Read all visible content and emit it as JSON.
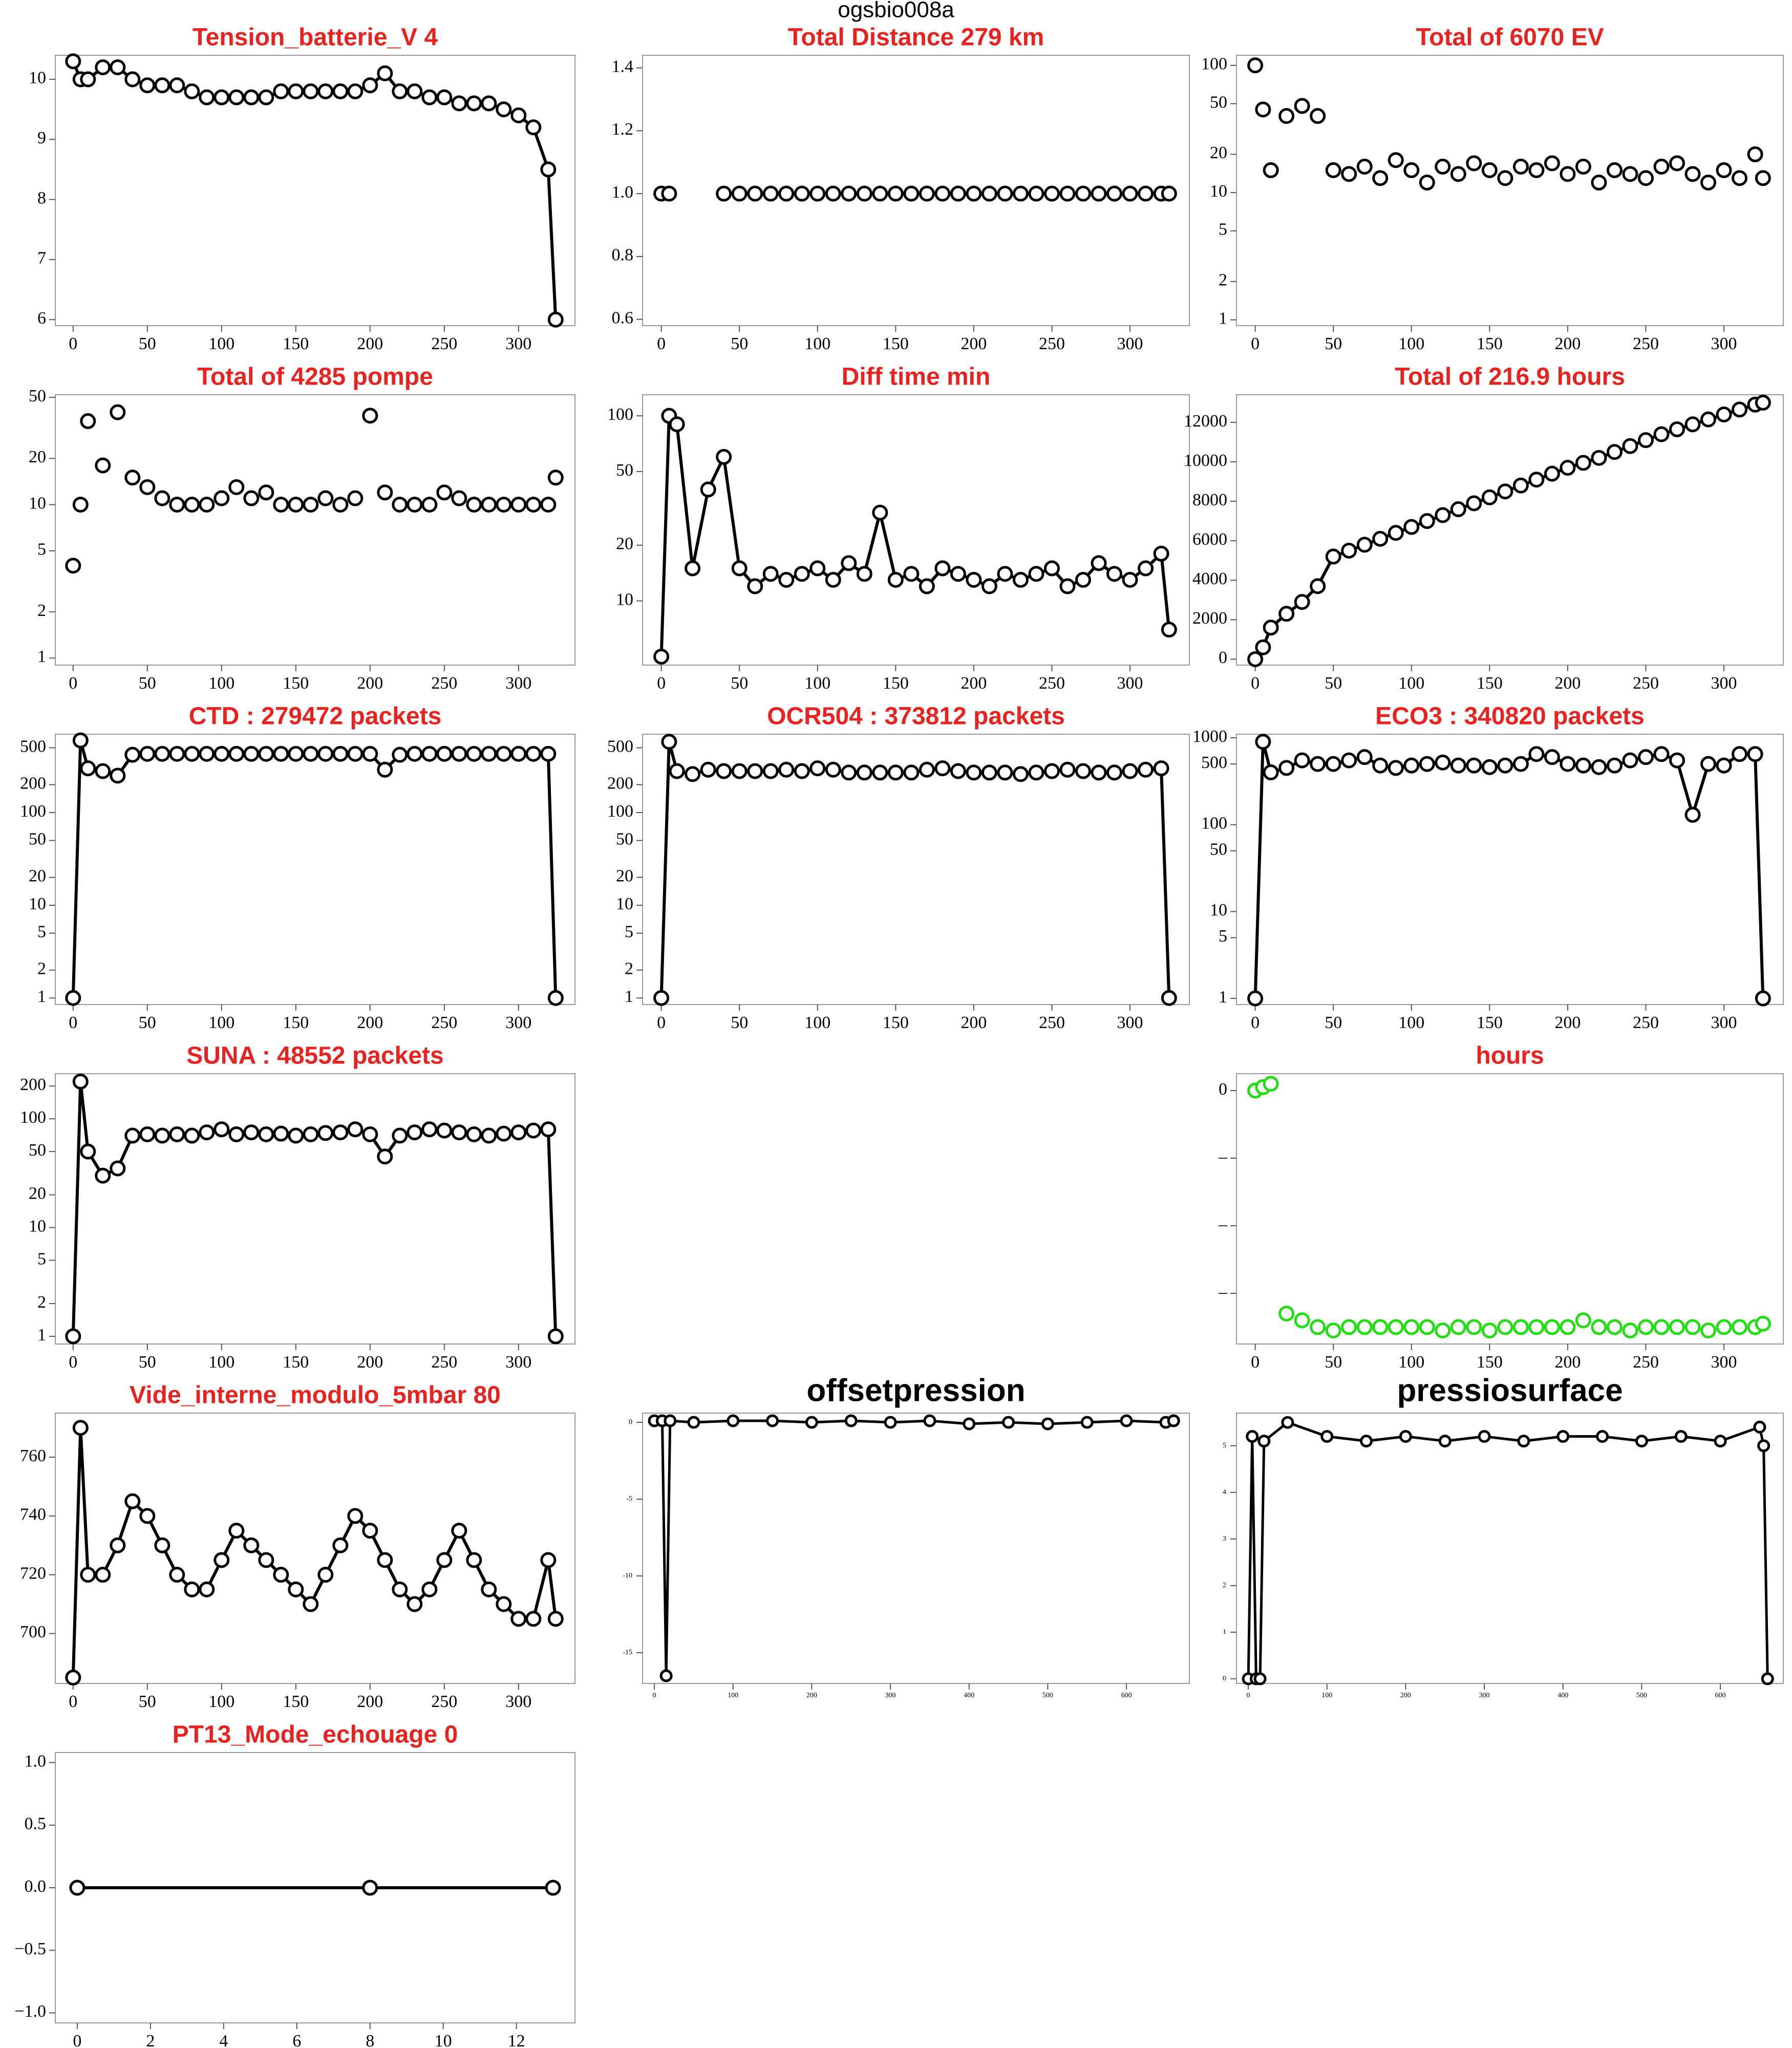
{
  "title": "ogsbio008a",
  "chart_data": [
    {
      "type": "line",
      "title": "Tension_batterie_V 4",
      "title_color": "#e8231f",
      "log_y": false,
      "color": "#000000",
      "x": [
        0,
        5,
        10,
        20,
        30,
        40,
        50,
        60,
        70,
        80,
        90,
        100,
        110,
        120,
        130,
        140,
        150,
        160,
        170,
        180,
        190,
        200,
        210,
        220,
        230,
        240,
        250,
        260,
        270,
        280,
        290,
        300,
        310,
        320,
        325
      ],
      "values": [
        10.3,
        10.0,
        10.0,
        10.2,
        10.2,
        10.0,
        9.9,
        9.9,
        9.9,
        9.8,
        9.7,
        9.7,
        9.7,
        9.7,
        9.7,
        9.8,
        9.8,
        9.8,
        9.8,
        9.8,
        9.8,
        9.9,
        10.1,
        9.8,
        9.8,
        9.7,
        9.7,
        9.6,
        9.6,
        9.6,
        9.5,
        9.4,
        9.2,
        8.5,
        6.0
      ],
      "xlim": [
        -12,
        338
      ],
      "xticks": [
        0,
        50,
        100,
        150,
        200,
        250,
        300
      ],
      "ylim": [
        5.9,
        10.4
      ],
      "yticks": [
        6,
        7,
        8,
        9,
        10
      ]
    },
    {
      "type": "scatter",
      "title": "Total Distance  279  km",
      "title_color": "#e8231f",
      "log_y": false,
      "color": "#000000",
      "x": [
        0,
        5,
        10,
        20,
        30,
        40,
        50,
        60,
        70,
        80,
        90,
        100,
        110,
        120,
        130,
        140,
        150,
        160,
        170,
        180,
        190,
        200,
        210,
        220,
        230,
        240,
        250,
        260,
        270,
        280,
        290,
        300,
        310,
        320,
        325
      ],
      "values": [
        1,
        1,
        null,
        null,
        null,
        1,
        1,
        1,
        1,
        1,
        1,
        1,
        1,
        1,
        1,
        1,
        1,
        1,
        1,
        1,
        1,
        1,
        1,
        1,
        1,
        1,
        1,
        1,
        1,
        1,
        1,
        1,
        1,
        1,
        1
      ],
      "xlim": [
        -12,
        338
      ],
      "xticks": [
        0,
        50,
        100,
        150,
        200,
        250,
        300
      ],
      "ylim": [
        0.58,
        1.44
      ],
      "yticks": [
        0.6,
        0.8,
        {
          "value": 1,
          "label": "1.0"
        },
        1.2,
        1.4
      ]
    },
    {
      "type": "scatter",
      "title": "Total of  6070  EV",
      "title_color": "#e8231f",
      "log_y": true,
      "color": "#000000",
      "x": [
        0,
        5,
        10,
        20,
        30,
        40,
        50,
        60,
        70,
        80,
        90,
        100,
        110,
        120,
        130,
        140,
        150,
        160,
        170,
        180,
        190,
        200,
        210,
        220,
        230,
        240,
        250,
        260,
        270,
        280,
        290,
        300,
        310,
        320,
        325
      ],
      "values": [
        100,
        45,
        15,
        40,
        48,
        40,
        15,
        14,
        16,
        13,
        18,
        15,
        12,
        16,
        14,
        17,
        15,
        13,
        16,
        15,
        17,
        14,
        16,
        12,
        15,
        14,
        13,
        16,
        17,
        14,
        12,
        15,
        13,
        20,
        13
      ],
      "xlim": [
        -12,
        338
      ],
      "xticks": [
        0,
        50,
        100,
        150,
        200,
        250,
        300
      ],
      "ylim": [
        0.9,
        120
      ],
      "yticks": [
        1,
        2,
        5,
        10,
        20,
        50,
        100
      ]
    },
    {
      "type": "scatter",
      "title": "Total of  4285  pompe",
      "title_color": "#e8231f",
      "log_y": true,
      "color": "#000000",
      "x": [
        0,
        5,
        10,
        20,
        30,
        40,
        50,
        60,
        70,
        80,
        90,
        100,
        110,
        120,
        130,
        140,
        150,
        160,
        170,
        180,
        190,
        200,
        210,
        220,
        230,
        240,
        250,
        260,
        270,
        280,
        290,
        300,
        310,
        320,
        325
      ],
      "values": [
        4,
        10,
        35,
        18,
        40,
        15,
        13,
        11,
        10,
        10,
        10,
        11,
        13,
        11,
        12,
        10,
        10,
        10,
        11,
        10,
        11,
        38,
        12,
        10,
        10,
        10,
        12,
        11,
        10,
        10,
        10,
        10,
        10,
        10,
        15
      ],
      "xlim": [
        -12,
        338
      ],
      "xticks": [
        0,
        50,
        100,
        150,
        200,
        250,
        300
      ],
      "ylim": [
        0.9,
        52
      ],
      "yticks": [
        1,
        2,
        5,
        10,
        20,
        50
      ]
    },
    {
      "type": "line",
      "title": "Diff time min",
      "title_color": "#e8231f",
      "log_y": true,
      "color": "#000000",
      "x": [
        0,
        5,
        10,
        20,
        30,
        40,
        50,
        60,
        70,
        80,
        90,
        100,
        110,
        120,
        130,
        140,
        150,
        160,
        170,
        180,
        190,
        200,
        210,
        220,
        230,
        240,
        250,
        260,
        270,
        280,
        290,
        300,
        310,
        320,
        325
      ],
      "values": [
        5,
        100,
        90,
        15,
        40,
        60,
        15,
        12,
        14,
        13,
        14,
        15,
        13,
        16,
        14,
        30,
        13,
        14,
        12,
        15,
        14,
        13,
        12,
        14,
        13,
        14,
        15,
        12,
        13,
        16,
        14,
        13,
        15,
        18,
        7
      ],
      "xlim": [
        -12,
        338
      ],
      "xticks": [
        0,
        50,
        100,
        150,
        200,
        250,
        300
      ],
      "ylim": [
        4.5,
        130
      ],
      "yticks": [
        10,
        20,
        50,
        100
      ]
    },
    {
      "type": "line",
      "title": "Total of  216.9  hours",
      "title_color": "#e8231f",
      "log_y": false,
      "color": "#000000",
      "x": [
        0,
        5,
        10,
        20,
        30,
        40,
        50,
        60,
        70,
        80,
        90,
        100,
        110,
        120,
        130,
        140,
        150,
        160,
        170,
        180,
        190,
        200,
        210,
        220,
        230,
        240,
        250,
        260,
        270,
        280,
        290,
        300,
        310,
        320,
        325
      ],
      "values": [
        0,
        600,
        1600,
        2300,
        2900,
        3700,
        5200,
        5500,
        5800,
        6100,
        6400,
        6700,
        7000,
        7300,
        7600,
        7900,
        8200,
        8500,
        8800,
        9100,
        9400,
        9700,
        9950,
        10200,
        10500,
        10800,
        11100,
        11400,
        11650,
        11900,
        12150,
        12400,
        12650,
        12900,
        13000
      ],
      "xlim": [
        -12,
        338
      ],
      "xticks": [
        0,
        50,
        100,
        150,
        200,
        250,
        300
      ],
      "ylim": [
        -300,
        13400
      ],
      "yticks": [
        0,
        2000,
        4000,
        6000,
        8000,
        10000,
        12000
      ]
    },
    {
      "type": "line",
      "title": "CTD  : 279472  packets",
      "title_color": "#e8231f",
      "log_y": true,
      "color": "#000000",
      "x": [
        0,
        5,
        10,
        20,
        30,
        40,
        50,
        60,
        70,
        80,
        90,
        100,
        110,
        120,
        130,
        140,
        150,
        160,
        170,
        180,
        190,
        200,
        210,
        220,
        230,
        240,
        250,
        260,
        270,
        280,
        290,
        300,
        310,
        320,
        325
      ],
      "values": [
        1,
        600,
        300,
        280,
        250,
        420,
        430,
        430,
        430,
        430,
        430,
        430,
        430,
        430,
        430,
        430,
        430,
        430,
        430,
        430,
        430,
        430,
        290,
        420,
        430,
        430,
        430,
        430,
        430,
        430,
        430,
        430,
        430,
        430,
        1
      ],
      "xlim": [
        -12,
        338
      ],
      "xticks": [
        0,
        50,
        100,
        150,
        200,
        250,
        300
      ],
      "ylim": [
        0.85,
        700
      ],
      "yticks": [
        1,
        2,
        5,
        10,
        20,
        50,
        100,
        200,
        500
      ]
    },
    {
      "type": "line",
      "title": "OCR504  : 373812  packets",
      "title_color": "#e8231f",
      "log_y": true,
      "color": "#000000",
      "x": [
        0,
        5,
        10,
        20,
        30,
        40,
        50,
        60,
        70,
        80,
        90,
        100,
        110,
        120,
        130,
        140,
        150,
        160,
        170,
        180,
        190,
        200,
        210,
        220,
        230,
        240,
        250,
        260,
        270,
        280,
        290,
        300,
        310,
        320,
        325
      ],
      "values": [
        1,
        580,
        280,
        260,
        290,
        280,
        280,
        280,
        280,
        290,
        280,
        300,
        290,
        270,
        270,
        270,
        270,
        270,
        290,
        300,
        280,
        270,
        270,
        270,
        260,
        270,
        280,
        290,
        280,
        270,
        270,
        280,
        290,
        300,
        1
      ],
      "xlim": [
        -12,
        338
      ],
      "xticks": [
        0,
        50,
        100,
        150,
        200,
        250,
        300
      ],
      "ylim": [
        0.85,
        700
      ],
      "yticks": [
        1,
        2,
        5,
        10,
        20,
        50,
        100,
        200,
        500
      ]
    },
    {
      "type": "line",
      "title": "ECO3  : 340820  packets",
      "title_color": "#e8231f",
      "log_y": true,
      "color": "#000000",
      "x": [
        0,
        5,
        10,
        20,
        30,
        40,
        50,
        60,
        70,
        80,
        90,
        100,
        110,
        120,
        130,
        140,
        150,
        160,
        170,
        180,
        190,
        200,
        210,
        220,
        230,
        240,
        250,
        260,
        270,
        280,
        290,
        300,
        310,
        320,
        325
      ],
      "values": [
        1,
        900,
        400,
        450,
        550,
        500,
        500,
        550,
        600,
        480,
        450,
        480,
        500,
        520,
        480,
        480,
        460,
        480,
        500,
        650,
        600,
        500,
        480,
        460,
        480,
        550,
        600,
        650,
        550,
        130,
        500,
        480,
        650,
        650,
        1
      ],
      "xlim": [
        -12,
        338
      ],
      "xticks": [
        0,
        50,
        100,
        150,
        200,
        250,
        300
      ],
      "ylim": [
        0.85,
        1100
      ],
      "yticks": [
        1,
        5,
        10,
        50,
        100,
        500,
        1000
      ]
    },
    {
      "type": "line",
      "title": "SUNA  : 48552  packets",
      "title_color": "#e8231f",
      "log_y": true,
      "color": "#000000",
      "x": [
        0,
        5,
        10,
        20,
        30,
        40,
        50,
        60,
        70,
        80,
        90,
        100,
        110,
        120,
        130,
        140,
        150,
        160,
        170,
        180,
        190,
        200,
        210,
        220,
        230,
        240,
        250,
        260,
        270,
        280,
        290,
        300,
        310,
        320,
        325
      ],
      "values": [
        1,
        220,
        50,
        30,
        35,
        70,
        72,
        70,
        72,
        70,
        75,
        80,
        72,
        75,
        72,
        73,
        70,
        72,
        74,
        75,
        80,
        72,
        45,
        70,
        75,
        80,
        78,
        75,
        72,
        70,
        73,
        75,
        78,
        80,
        1
      ],
      "xlim": [
        -12,
        338
      ],
      "xticks": [
        0,
        50,
        100,
        150,
        200,
        250,
        300
      ],
      "ylim": [
        0.85,
        260
      ],
      "yticks": [
        1,
        2,
        5,
        10,
        20,
        50,
        100,
        200
      ]
    },
    {
      "type": "scatter",
      "title": "hours",
      "title_color": "#e8231f",
      "log_y": false,
      "color": "#22dd11",
      "x": [
        0,
        5,
        10,
        20,
        30,
        40,
        50,
        60,
        70,
        80,
        90,
        100,
        110,
        120,
        130,
        140,
        150,
        160,
        170,
        180,
        190,
        200,
        210,
        220,
        230,
        240,
        250,
        260,
        270,
        280,
        290,
        300,
        310,
        320,
        325
      ],
      "values": [
        0,
        0.05,
        0.1,
        -3.3,
        -3.4,
        -3.5,
        -3.55,
        -3.5,
        -3.5,
        -3.5,
        -3.5,
        -3.5,
        -3.5,
        -3.55,
        -3.5,
        -3.5,
        -3.55,
        -3.5,
        -3.5,
        -3.5,
        -3.5,
        -3.5,
        -3.4,
        -3.5,
        -3.5,
        -3.55,
        -3.5,
        -3.5,
        -3.5,
        -3.5,
        -3.55,
        -3.5,
        -3.5,
        -3.5,
        -3.45
      ],
      "xlim": [
        -12,
        338
      ],
      "xticks": [
        0,
        50,
        100,
        150,
        200,
        250,
        300
      ],
      "ylim": [
        -3.75,
        0.25
      ],
      "yticks": [
        0,
        {
          "value": -1,
          "label": "–"
        },
        {
          "value": -2,
          "label": "–"
        },
        {
          "value": -3,
          "label": "–"
        }
      ]
    },
    {
      "type": "line",
      "title": "Vide_interne_modulo_5mbar 80",
      "title_color": "#e8231f",
      "log_y": false,
      "color": "#000000",
      "x": [
        0,
        5,
        10,
        20,
        30,
        40,
        50,
        60,
        70,
        80,
        90,
        100,
        110,
        120,
        130,
        140,
        150,
        160,
        170,
        180,
        190,
        200,
        210,
        220,
        230,
        240,
        250,
        260,
        270,
        280,
        290,
        300,
        310,
        320,
        325
      ],
      "values": [
        685,
        770,
        720,
        720,
        730,
        745,
        740,
        730,
        720,
        715,
        715,
        725,
        735,
        730,
        725,
        720,
        715,
        710,
        720,
        730,
        740,
        735,
        725,
        715,
        710,
        715,
        725,
        735,
        725,
        715,
        710,
        705,
        705,
        725,
        705
      ],
      "xlim": [
        -12,
        338
      ],
      "xticks": [
        0,
        50,
        100,
        150,
        200,
        250,
        300
      ],
      "ylim": [
        683,
        775
      ],
      "yticks": [
        700,
        720,
        740,
        760
      ]
    },
    {
      "type": "line",
      "title": "offsetpression",
      "title_color": "#000000",
      "log_y": false,
      "color": "#000000",
      "x": [
        0,
        10,
        15,
        20,
        50,
        100,
        150,
        200,
        250,
        300,
        350,
        400,
        450,
        500,
        550,
        600,
        650,
        660
      ],
      "values": [
        0.1,
        0.1,
        -16.5,
        0.1,
        0.0,
        0.1,
        0.1,
        0.0,
        0.1,
        0.0,
        0.1,
        -0.1,
        0.0,
        -0.1,
        0.0,
        0.1,
        0.0,
        0.1
      ],
      "xlim": [
        -15,
        680
      ],
      "xticks": [
        0,
        100,
        200,
        300,
        400,
        500,
        600
      ],
      "ylim": [
        -17,
        0.6
      ],
      "yticks": [
        0,
        -5,
        -10,
        -15
      ]
    },
    {
      "type": "line",
      "title": "pressiosurface",
      "title_color": "#000000",
      "log_y": false,
      "color": "#000000",
      "x": [
        0,
        5,
        10,
        15,
        20,
        50,
        100,
        150,
        200,
        250,
        300,
        350,
        400,
        450,
        500,
        550,
        600,
        650,
        655,
        660
      ],
      "values": [
        0,
        5.2,
        0,
        0,
        5.1,
        5.5,
        5.2,
        5.1,
        5.2,
        5.1,
        5.2,
        5.1,
        5.2,
        5.2,
        5.1,
        5.2,
        5.1,
        5.4,
        5.0,
        0
      ],
      "xlim": [
        -15,
        680
      ],
      "xticks": [
        0,
        100,
        200,
        300,
        400,
        500,
        600
      ],
      "ylim": [
        -0.1,
        5.7
      ],
      "yticks": [
        0,
        1,
        2,
        3,
        4,
        5
      ]
    },
    {
      "type": "line",
      "title": "PT13_Mode_echouage  0",
      "title_color": "#e8231f",
      "log_y": false,
      "color": "#000000",
      "x": [
        0,
        8,
        13
      ],
      "values": [
        0,
        0,
        0
      ],
      "xlim": [
        -0.6,
        13.6
      ],
      "xticks": [
        0,
        2,
        4,
        6,
        8,
        10,
        12
      ],
      "ylim": [
        -1.08,
        1.08
      ],
      "yticks": [
        {
          "value": -1,
          "label": "−1.0"
        },
        {
          "value": -0.5,
          "label": "−0.5"
        },
        {
          "value": 0,
          "label": "0.0"
        },
        0.5,
        {
          "value": 1,
          "label": "1.0"
        }
      ]
    }
  ]
}
